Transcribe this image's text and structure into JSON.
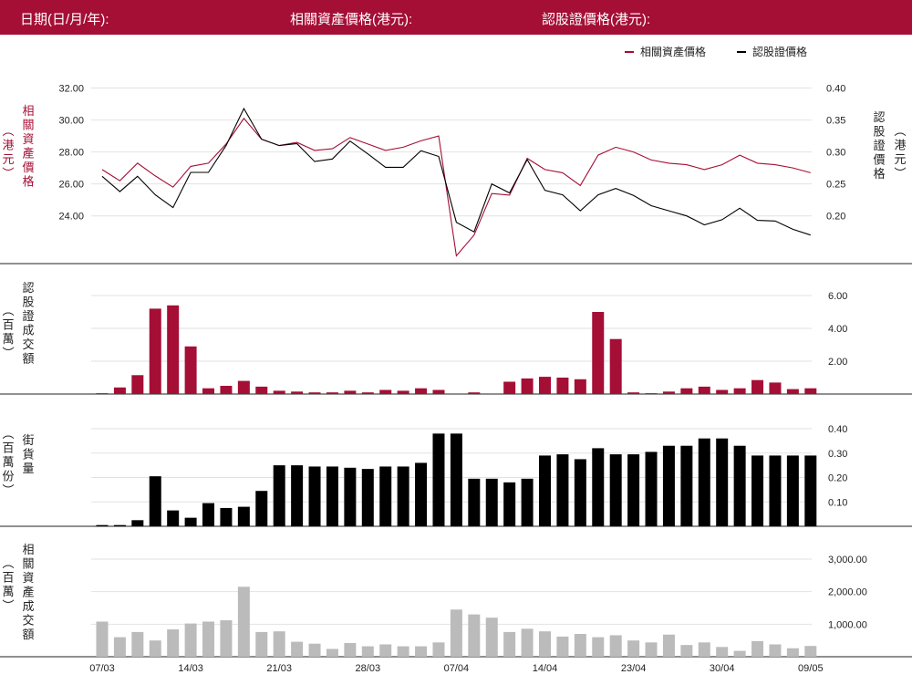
{
  "header": {
    "date_label": "日期(日/月/年):",
    "asset_price_label": "相關資產價格(港元):",
    "warrant_price_label": "認股證價格(港元):"
  },
  "colors": {
    "header_bg": "#a50e35",
    "asset": "#a50e35",
    "warrant": "#000000",
    "asset_turnover": "#bbbbbb"
  },
  "chart_data": [
    {
      "type": "line",
      "name": "price",
      "legend": [
        "相關資產價格",
        "認股證價格"
      ],
      "legend_position": "top-right",
      "ylabel_left": "相關資產價格（港元）",
      "ylabel_right": "認股證價格（港元）",
      "ylim_left": [
        22.5,
        33
      ],
      "ylim_right": [
        0.1625,
        0.425
      ],
      "yticks_left": [
        "24.00",
        "26.00",
        "28.00",
        "30.00",
        "32.00"
      ],
      "yticks_right": [
        "0.20",
        "0.25",
        "0.30",
        "0.35",
        "0.40"
      ],
      "grid": true,
      "series": [
        {
          "name": "相關資產價格",
          "axis": "left",
          "values": [
            26.9,
            26.2,
            27.3,
            26.5,
            25.8,
            27.1,
            27.3,
            28.5,
            30.1,
            28.8,
            28.4,
            28.6,
            28.1,
            28.2,
            28.9,
            28.5,
            28.1,
            28.3,
            28.7,
            29.0,
            21.5,
            22.8,
            25.4,
            25.3,
            27.6,
            26.9,
            26.7,
            25.9,
            27.8,
            28.3,
            28.0,
            27.5,
            27.3,
            27.2,
            26.9,
            27.2,
            27.8,
            27.3,
            27.2,
            27.0,
            26.7
          ]
        },
        {
          "name": "認股證價格",
          "axis": "right",
          "values": [
            0.262,
            0.238,
            0.262,
            0.233,
            0.213,
            0.268,
            0.268,
            0.31,
            0.368,
            0.32,
            0.31,
            0.313,
            0.285,
            0.289,
            0.317,
            0.297,
            0.276,
            0.276,
            0.302,
            0.293,
            0.19,
            0.175,
            0.25,
            0.236,
            0.288,
            0.24,
            0.233,
            0.208,
            0.233,
            0.243,
            0.232,
            0.216,
            0.208,
            0.2,
            0.186,
            0.194,
            0.212,
            0.193,
            0.192,
            0.179,
            0.17
          ]
        }
      ]
    },
    {
      "type": "bar",
      "name": "warrant_turnover",
      "ylabel": "認股證成交額（百萬）",
      "ylim": [
        0,
        6
      ],
      "yticks": [
        "2.00",
        "4.00",
        "6.00"
      ],
      "values": [
        0.05,
        0.4,
        1.15,
        5.2,
        5.4,
        2.9,
        0.35,
        0.5,
        0.8,
        0.45,
        0.2,
        0.15,
        0.1,
        0.1,
        0.2,
        0.1,
        0.25,
        0.2,
        0.35,
        0.25,
        0.0,
        0.1,
        0.0,
        0.75,
        0.95,
        1.05,
        1.0,
        0.9,
        5.0,
        3.35,
        0.1,
        0.05,
        0.15,
        0.35,
        0.45,
        0.25,
        0.35,
        0.85,
        0.7,
        0.3,
        0.35
      ]
    },
    {
      "type": "bar",
      "name": "street_volume",
      "ylabel": "街貨量（百萬份）",
      "ylim": [
        0,
        0.4
      ],
      "yticks": [
        "0.10",
        "0.20",
        "0.30",
        "0.40"
      ],
      "values": [
        0.005,
        0.005,
        0.025,
        0.205,
        0.065,
        0.035,
        0.095,
        0.075,
        0.08,
        0.145,
        0.25,
        0.25,
        0.245,
        0.245,
        0.24,
        0.235,
        0.245,
        0.245,
        0.26,
        0.38,
        0.38,
        0.195,
        0.195,
        0.18,
        0.195,
        0.29,
        0.295,
        0.275,
        0.32,
        0.295,
        0.295,
        0.305,
        0.33,
        0.33,
        0.36,
        0.36,
        0.33,
        0.29,
        0.29,
        0.29,
        0.29
      ]
    },
    {
      "type": "bar",
      "name": "asset_turnover",
      "ylabel": "相關資產成交額（百萬）",
      "ylim": [
        0,
        3000
      ],
      "yticks": [
        "1,000.00",
        "2,000.00",
        "3,000.00"
      ],
      "values": [
        1080,
        600,
        760,
        500,
        840,
        1020,
        1080,
        1120,
        2150,
        760,
        780,
        460,
        400,
        240,
        420,
        320,
        380,
        320,
        320,
        440,
        1450,
        1300,
        1200,
        760,
        860,
        780,
        620,
        700,
        600,
        660,
        500,
        440,
        680,
        360,
        440,
        300,
        180,
        480,
        380,
        260,
        330
      ]
    }
  ],
  "xticks": [
    {
      "label": "07/03",
      "index": 0
    },
    {
      "label": "14/03",
      "index": 5
    },
    {
      "label": "21/03",
      "index": 10
    },
    {
      "label": "28/03",
      "index": 15
    },
    {
      "label": "07/04",
      "index": 20
    },
    {
      "label": "14/04",
      "index": 25
    },
    {
      "label": "23/04",
      "index": 30
    },
    {
      "label": "30/04",
      "index": 35
    },
    {
      "label": "09/05",
      "index": 40
    }
  ]
}
